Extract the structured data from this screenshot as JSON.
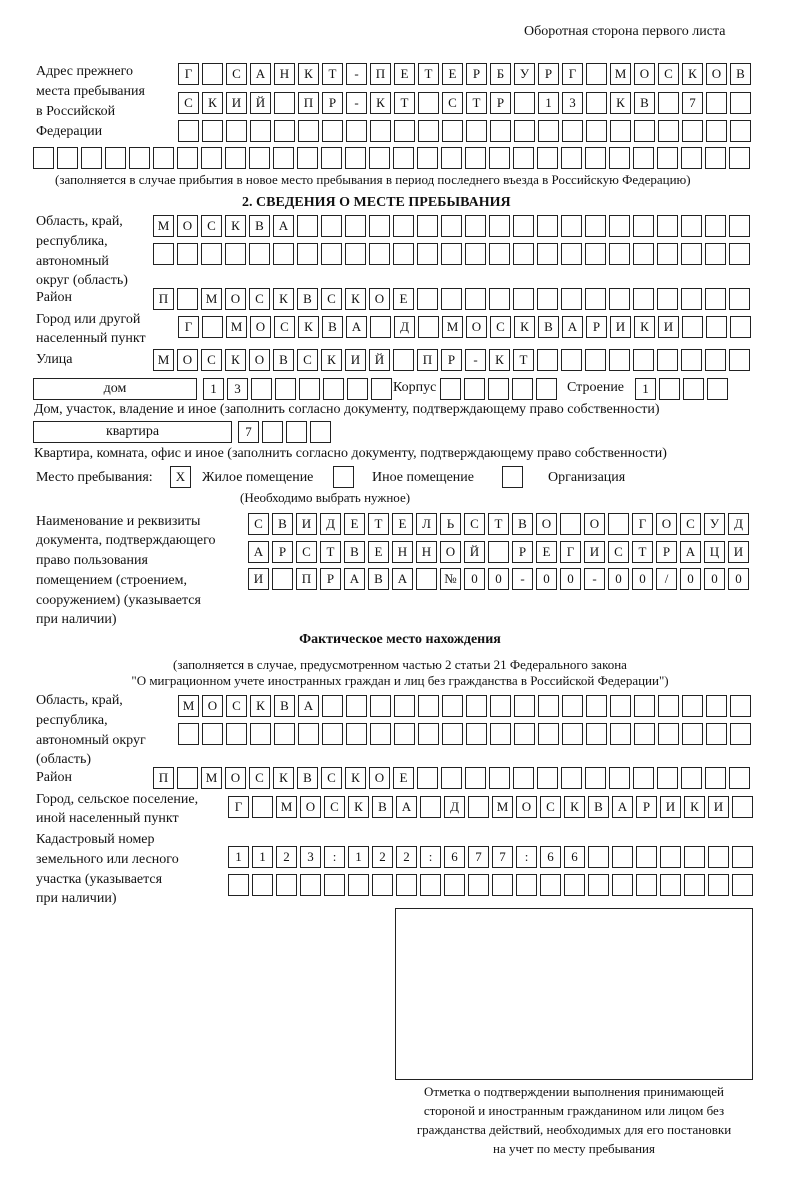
{
  "header": "Оборотная сторона первого листа",
  "prev": {
    "label": [
      "Адрес прежнего",
      "места пребывания",
      "в Российской",
      "Федерации"
    ],
    "rows": [
      [
        "Г",
        "",
        "С",
        "А",
        "Н",
        "К",
        "Т",
        "-",
        "П",
        "Е",
        "Т",
        "Е",
        "Р",
        "Б",
        "У",
        "Р",
        "Г",
        "",
        "М",
        "О",
        "С",
        "К",
        "О",
        "В"
      ],
      [
        "С",
        "К",
        "И",
        "Й",
        "",
        "П",
        "Р",
        "-",
        "К",
        "Т",
        "",
        "С",
        "Т",
        "Р",
        "",
        "1",
        "3",
        "",
        "К",
        "В",
        "",
        "7",
        "",
        ""
      ],
      [
        "",
        "",
        "",
        "",
        "",
        "",
        "",
        "",
        "",
        "",
        "",
        "",
        "",
        "",
        "",
        "",
        "",
        "",
        "",
        "",
        "",
        "",
        "",
        ""
      ],
      [
        "",
        "",
        "",
        "",
        "",
        "",
        "",
        "",
        "",
        "",
        "",
        "",
        "",
        "",
        "",
        "",
        "",
        "",
        "",
        "",
        "",
        "",
        "",
        "",
        "",
        "",
        "",
        "",
        "",
        ""
      ]
    ],
    "note": "(заполняется в случае прибытия в новое место пребывания в период последнего въезда в Российскую Федерацию)"
  },
  "s2": {
    "title": "2. СВЕДЕНИЯ О МЕСТЕ ПРЕБЫВАНИЯ",
    "region_label": [
      "Область, край,",
      "республика,",
      "автономный",
      "округ (область)"
    ],
    "region": [
      [
        "М",
        "О",
        "С",
        "К",
        "В",
        "А",
        "",
        "",
        "",
        "",
        "",
        "",
        "",
        "",
        "",
        "",
        "",
        "",
        "",
        "",
        "",
        "",
        "",
        "",
        ""
      ],
      [
        "",
        "",
        "",
        "",
        "",
        "",
        "",
        "",
        "",
        "",
        "",
        "",
        "",
        "",
        "",
        "",
        "",
        "",
        "",
        "",
        "",
        "",
        "",
        "",
        ""
      ]
    ],
    "district_label": "Район",
    "district": [
      "П",
      "",
      "М",
      "О",
      "С",
      "К",
      "В",
      "С",
      "К",
      "О",
      "Е",
      "",
      "",
      "",
      "",
      "",
      "",
      "",
      "",
      "",
      "",
      "",
      "",
      "",
      ""
    ],
    "city_label": [
      "Город или другой",
      "населенный пункт"
    ],
    "city": [
      "Г",
      "",
      "М",
      "О",
      "С",
      "К",
      "В",
      "А",
      "",
      "Д",
      "",
      "М",
      "О",
      "С",
      "К",
      "В",
      "А",
      "Р",
      "И",
      "К",
      "И",
      "",
      "",
      ""
    ],
    "street_label": "Улица",
    "street": [
      "М",
      "О",
      "С",
      "К",
      "О",
      "В",
      "С",
      "К",
      "И",
      "Й",
      "",
      "П",
      "Р",
      "-",
      "К",
      "Т",
      "",
      "",
      "",
      "",
      "",
      "",
      "",
      "",
      ""
    ],
    "house_type": "дом",
    "house": [
      "1",
      "3",
      "",
      "",
      "",
      "",
      "",
      ""
    ],
    "korpus_label": "Корпус",
    "korpus": [
      "",
      "",
      "",
      "",
      ""
    ],
    "building_label": "Строение",
    "building": [
      "1",
      "",
      "",
      ""
    ],
    "house_note": "Дом, участок, владение и иное (заполнить согласно документу, подтверждающему право собственности)",
    "flat_type": "квартира",
    "flat": [
      "7",
      "",
      "",
      ""
    ],
    "flat_note": "Квартира, комната, офис и иное (заполнить согласно документу, подтверждающему право собственности)",
    "stay_label": "Место пребывания:",
    "options": [
      {
        "label": "Жилое помещение",
        "mark": "X"
      },
      {
        "label": "Иное помещение",
        "mark": ""
      },
      {
        "label": "Организация",
        "mark": ""
      }
    ],
    "choose_note": "(Необходимо выбрать нужное)",
    "doc_label": [
      "Наименование и реквизиты",
      "документа, подтверждающего",
      "право пользования",
      "помещением (строением,",
      "сооружением) (указывается",
      "при наличии)"
    ],
    "doc": [
      [
        "С",
        "В",
        "И",
        "Д",
        "Е",
        "Т",
        "Е",
        "Л",
        "Ь",
        "С",
        "Т",
        "В",
        "О",
        "",
        "О",
        "",
        "Г",
        "О",
        "С",
        "У",
        "Д"
      ],
      [
        "А",
        "Р",
        "С",
        "Т",
        "В",
        "Е",
        "Н",
        "Н",
        "О",
        "Й",
        "",
        "Р",
        "Е",
        "Г",
        "И",
        "С",
        "Т",
        "Р",
        "А",
        "Ц",
        "И"
      ],
      [
        "И",
        "",
        "П",
        "Р",
        "А",
        "В",
        "А",
        "",
        "№",
        "0",
        "0",
        "-",
        "0",
        "0",
        "-",
        "0",
        "0",
        "/",
        "0",
        "0",
        "0"
      ]
    ]
  },
  "actual": {
    "title": "Фактическое место нахождения",
    "note": [
      "(заполняется в случае, предусмотренном частью 2 статьи 21 Федерального закона",
      "\"О миграционном учете иностранных граждан и лиц без гражданства в Российской Федерации\")"
    ],
    "region_label": [
      "Область, край,",
      "республика,",
      "автономный округ",
      "(область)"
    ],
    "region": [
      [
        "М",
        "О",
        "С",
        "К",
        "В",
        "А",
        "",
        "",
        "",
        "",
        "",
        "",
        "",
        "",
        "",
        "",
        "",
        "",
        "",
        "",
        "",
        "",
        "",
        ""
      ],
      [
        "",
        "",
        "",
        "",
        "",
        "",
        "",
        "",
        "",
        "",
        "",
        "",
        "",
        "",
        "",
        "",
        "",
        "",
        "",
        "",
        "",
        "",
        "",
        ""
      ]
    ],
    "district_label": "Район",
    "district": [
      "П",
      "",
      "М",
      "О",
      "С",
      "К",
      "В",
      "С",
      "К",
      "О",
      "Е",
      "",
      "",
      "",
      "",
      "",
      "",
      "",
      "",
      "",
      "",
      "",
      "",
      "",
      ""
    ],
    "city_label": [
      "Город, сельское поселение,",
      "иной населенный пункт"
    ],
    "city": [
      "Г",
      "",
      "М",
      "О",
      "С",
      "К",
      "В",
      "А",
      "",
      "Д",
      "",
      "М",
      "О",
      "С",
      "К",
      "В",
      "А",
      "Р",
      "И",
      "К",
      "И",
      ""
    ],
    "cadastral_label": [
      "Кадастровый номер",
      "земельного или лесного",
      "участка (указывается",
      "при наличии)"
    ],
    "cadastral": [
      [
        "1",
        "1",
        "2",
        "3",
        ":",
        "1",
        "2",
        "2",
        ":",
        "6",
        "7",
        "7",
        ":",
        "6",
        "6",
        "",
        "",
        "",
        "",
        "",
        "",
        ""
      ],
      [
        "",
        "",
        "",
        "",
        "",
        "",
        "",
        "",
        "",
        "",
        "",
        "",
        "",
        "",
        "",
        "",
        "",
        "",
        "",
        "",
        "",
        ""
      ]
    ]
  },
  "stamp_note": [
    "Отметка о подтверждении выполнения принимающей",
    "стороной и иностранным гражданином или лицом без",
    "гражданства действий, необходимых для его постановки",
    "на учет по месту пребывания"
  ]
}
